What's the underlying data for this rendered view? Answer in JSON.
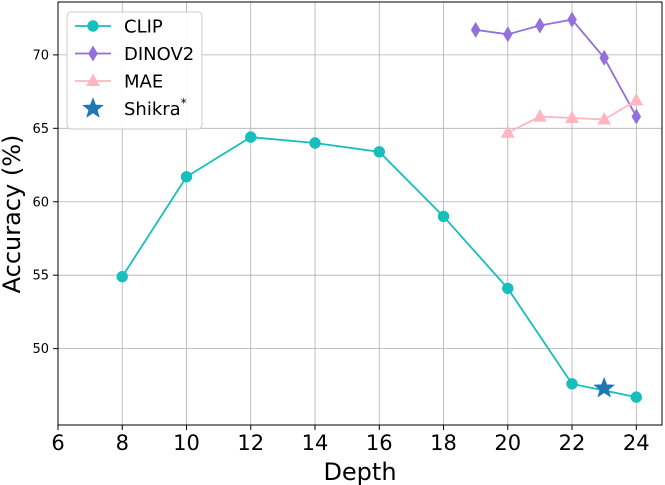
{
  "chart_data": {
    "type": "line",
    "title": "",
    "xlabel": "Depth",
    "ylabel": "Accuracy (%)",
    "xlim": [
      6,
      24.8
    ],
    "ylim": [
      44.8,
      73.6
    ],
    "xticks": [
      6,
      8,
      10,
      12,
      14,
      16,
      18,
      20,
      22,
      24
    ],
    "yticks": [
      50,
      55,
      60,
      65,
      70
    ],
    "grid": true,
    "legend_position": "top-left",
    "series": [
      {
        "name": "CLIP",
        "marker": "circle",
        "color": "#17bebb",
        "line": true,
        "x": [
          8,
          10,
          12,
          14,
          16,
          18,
          20,
          22,
          24
        ],
        "y": [
          54.9,
          61.7,
          64.4,
          64.0,
          63.4,
          59.0,
          54.1,
          47.6,
          46.7
        ]
      },
      {
        "name": "DINOV2",
        "marker": "thin_diamond",
        "color": "#9370db",
        "line": true,
        "x": [
          19,
          20,
          21,
          22,
          23,
          24
        ],
        "y": [
          71.7,
          71.4,
          72.0,
          72.4,
          69.8,
          65.8
        ]
      },
      {
        "name": "MAE",
        "marker": "triangle",
        "color": "#ffb6c1",
        "line": true,
        "x": [
          20,
          21,
          22,
          23,
          24
        ],
        "y": [
          64.7,
          65.8,
          65.7,
          65.6,
          66.9
        ]
      },
      {
        "name": "Shikra*",
        "legend_base": "Shikra",
        "legend_sup": "*",
        "marker": "star",
        "color": "#1f77b4",
        "line": false,
        "x": [
          23
        ],
        "y": [
          47.3
        ]
      }
    ]
  }
}
